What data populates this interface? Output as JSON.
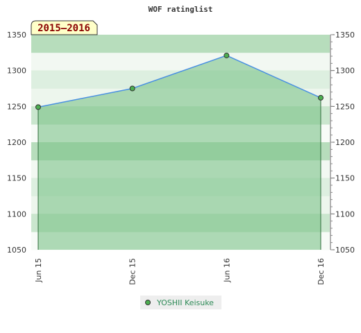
{
  "chart_data": {
    "type": "area",
    "title": "WOF ratinglist",
    "badge": "2015–2016",
    "categories": [
      "Jun 15",
      "Dec 15",
      "Jun 16",
      "Dec 16"
    ],
    "series": [
      {
        "name": "YOSHII Keisuke",
        "values": [
          1249,
          1275,
          1321,
          1262
        ]
      }
    ],
    "ylim": [
      1050,
      1350
    ],
    "yticks": [
      1050,
      1100,
      1150,
      1200,
      1250,
      1300,
      1350
    ],
    "ytick_labels": [
      "1050",
      "1100",
      "1150",
      "1200",
      "1250",
      "1300",
      "1350"
    ],
    "axis_right": true,
    "grid": true,
    "legend_position": "bottom-center",
    "colors": {
      "line": "#4a90e2",
      "marker": "#4caf50",
      "band_light": "#e7f3e7",
      "band_dark": "#9fd2a5",
      "fill": "#7cc389",
      "badge_bg": "#ffffc8",
      "legend_text": "#2e8b57"
    }
  }
}
